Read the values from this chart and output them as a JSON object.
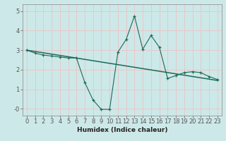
{
  "title": "",
  "xlabel": "Humidex (Indice chaleur)",
  "bg_color": "#cde8e8",
  "grid_color": "#e8c8c8",
  "line_color": "#1a6b5a",
  "xlim": [
    -0.5,
    23.5
  ],
  "ylim": [
    -0.35,
    5.35
  ],
  "xticks": [
    0,
    1,
    2,
    3,
    4,
    5,
    6,
    7,
    8,
    9,
    10,
    11,
    12,
    13,
    14,
    15,
    16,
    17,
    18,
    19,
    20,
    21,
    22,
    23
  ],
  "yticks": [
    0,
    1,
    2,
    3,
    4,
    5
  ],
  "ytick_labels": [
    "-0",
    "1",
    "2",
    "3",
    "4",
    "5"
  ],
  "scatter_x": [
    0,
    1,
    2,
    3,
    4,
    5,
    6,
    7,
    8,
    9,
    10,
    11,
    12,
    13,
    14,
    15,
    16,
    17,
    18,
    19,
    20,
    21,
    22,
    23
  ],
  "scatter_y": [
    3.0,
    2.85,
    2.75,
    2.7,
    2.65,
    2.6,
    2.6,
    1.35,
    0.45,
    -0.03,
    -0.03,
    2.9,
    3.55,
    4.75,
    3.05,
    3.75,
    3.15,
    1.55,
    1.7,
    1.85,
    1.9,
    1.85,
    1.65,
    1.5
  ],
  "trend_x": [
    0,
    23
  ],
  "trend_y": [
    3.0,
    1.45
  ],
  "xlabel_fontsize": 6.5,
  "xlabel_fontweight": "bold",
  "tick_label_fontsize": 6,
  "ylabel_fontsize": 6
}
